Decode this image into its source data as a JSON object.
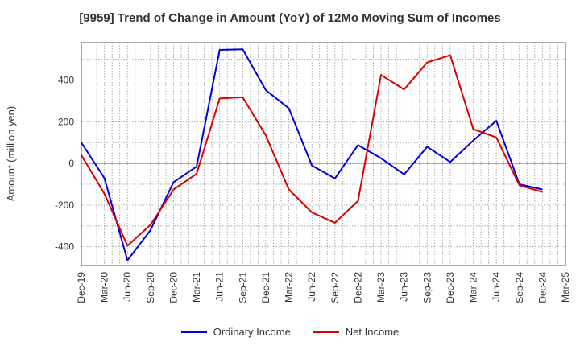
{
  "chart_data": {
    "type": "line",
    "title": "[9959]  Trend of Change in Amount (YoY) of 12Mo Moving Sum of Incomes",
    "xlabel": "",
    "ylabel": "Amount (million yen)",
    "ylim": [
      -490,
      580
    ],
    "yticks": [
      -400,
      -200,
      0,
      200,
      400
    ],
    "categories": [
      "Dec-19",
      "Mar-20",
      "Jun-20",
      "Sep-20",
      "Dec-20",
      "Mar-21",
      "Jun-21",
      "Sep-21",
      "Dec-21",
      "Mar-22",
      "Jun-22",
      "Sep-22",
      "Dec-22",
      "Mar-23",
      "Jun-23",
      "Sep-23",
      "Dec-23",
      "Mar-24",
      "Jun-24",
      "Sep-24",
      "Dec-24",
      "Mar-25"
    ],
    "grid": true,
    "legend_position": "bottom",
    "series": [
      {
        "name": "Ordinary Income",
        "color": "#0000dd",
        "values": [
          100,
          -70,
          -465,
          -320,
          -90,
          -15,
          545,
          548,
          352,
          265,
          -10,
          -72,
          88,
          25,
          -53,
          80,
          7,
          110,
          205,
          -100,
          -125,
          null
        ]
      },
      {
        "name": "Net Income",
        "color": "#dd0000",
        "values": [
          40,
          -145,
          -395,
          -295,
          -125,
          -50,
          312,
          318,
          135,
          -125,
          -235,
          -285,
          -180,
          425,
          355,
          485,
          520,
          165,
          125,
          -105,
          -137,
          null
        ]
      }
    ]
  }
}
